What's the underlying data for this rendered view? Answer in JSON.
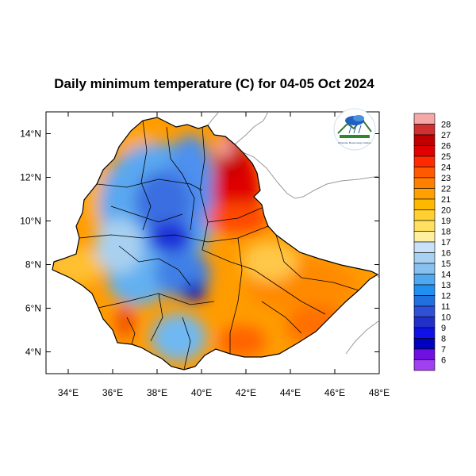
{
  "title": "Daily minimum temperature (C) for 04-05 Oct 2024",
  "axes": {
    "x_ticks": [
      "34°E",
      "36°E",
      "38°E",
      "40°E",
      "42°E",
      "44°E",
      "46°E",
      "48°E"
    ],
    "y_ticks": [
      "14°N",
      "12°N",
      "10°N",
      "8°N",
      "6°N",
      "4°N"
    ],
    "x_range": [
      33,
      48
    ],
    "y_range": [
      3,
      15
    ]
  },
  "colorbar": {
    "labels": [
      "28",
      "27",
      "26",
      "25",
      "24",
      "23",
      "22",
      "21",
      "20",
      "19",
      "18",
      "17",
      "16",
      "15",
      "14",
      "13",
      "12",
      "11",
      "10",
      "9",
      "8",
      "7",
      "6"
    ],
    "colors": [
      "#f6a8a8",
      "#d03030",
      "#c00000",
      "#e00000",
      "#ff2a00",
      "#ff5a00",
      "#ff8000",
      "#ffa000",
      "#ffb800",
      "#ffd030",
      "#ffe060",
      "#fff0a0",
      "#c8e0f8",
      "#a8d0f0",
      "#88c0f0",
      "#50a8f0",
      "#2090f0",
      "#2070e0",
      "#3050d8",
      "#2030c8",
      "#1010e8",
      "#0000c0",
      "#7010e0",
      "#a040f0"
    ]
  },
  "logo": {
    "name": "meteorology-agency-logo",
    "caption": "Ethiopian Meteorology Institute"
  }
}
